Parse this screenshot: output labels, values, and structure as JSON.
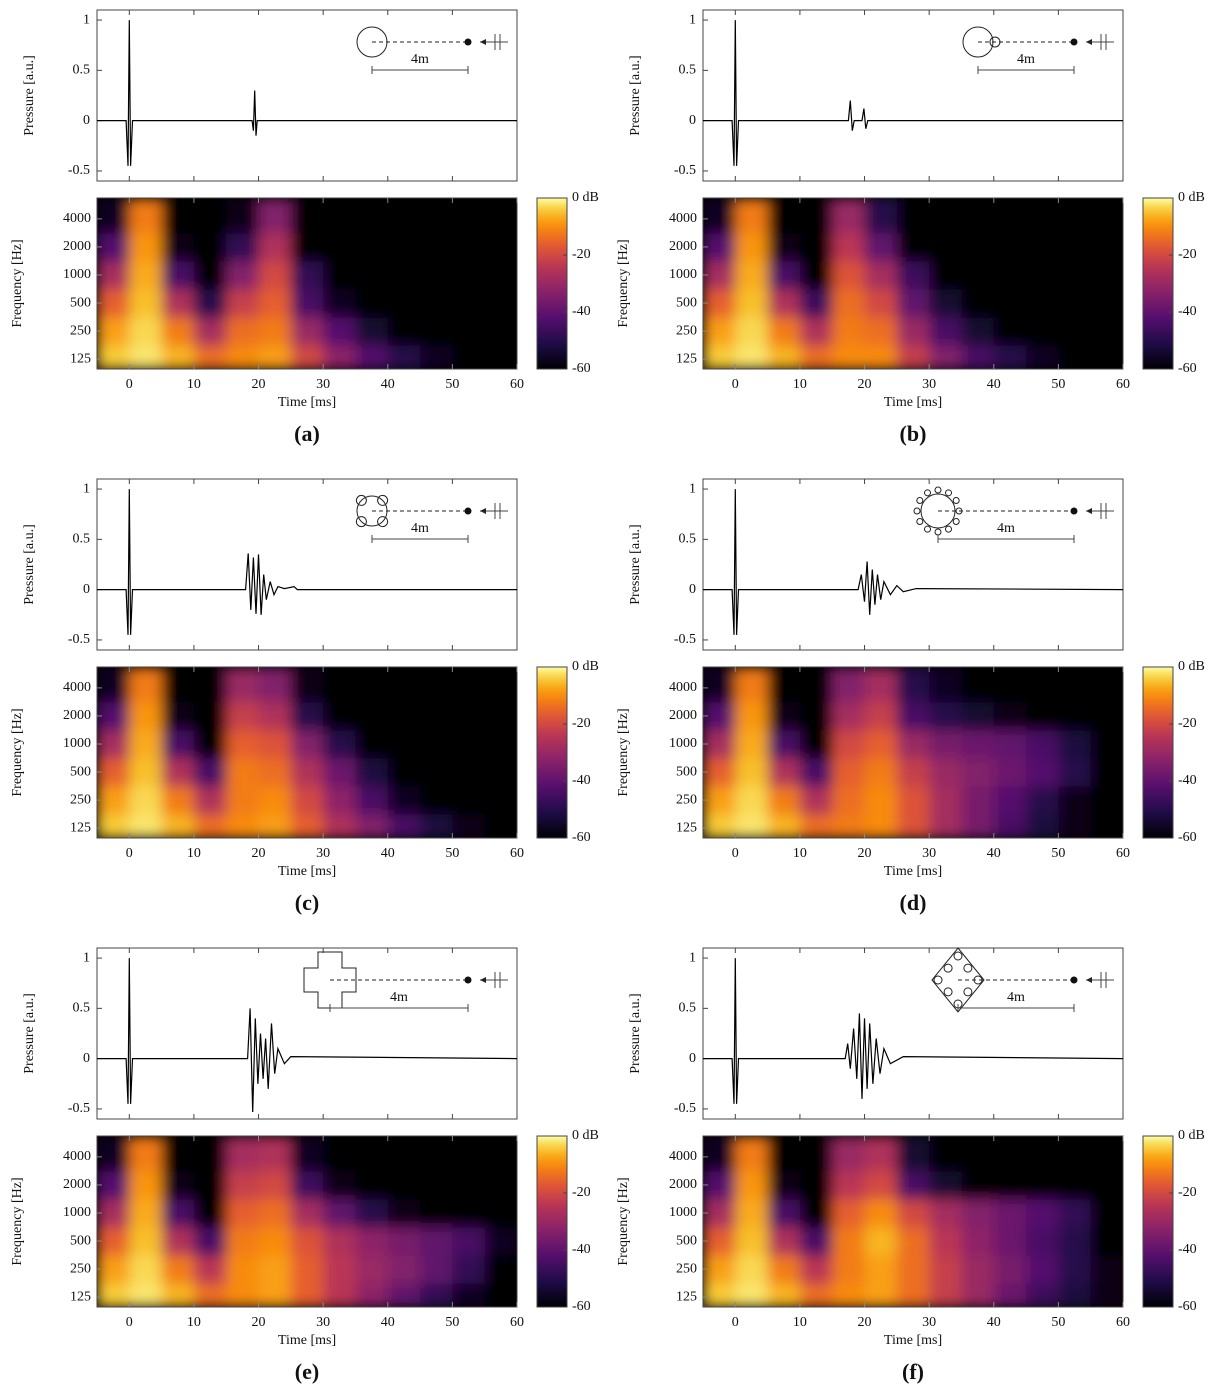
{
  "chart_data": [
    {
      "type": "line",
      "ylabel": "Pressure [a.u.]",
      "annotation": "4m",
      "xlim": [
        -5,
        60
      ],
      "ylim": [
        -0.6,
        1.1
      ],
      "yticks": [
        -0.5,
        0,
        0.5,
        1
      ],
      "color": "#000000",
      "x": [
        -5,
        -0.5,
        -0.2,
        0,
        0.2,
        0.5,
        19,
        19.2,
        19.4,
        19.6,
        19.8,
        20,
        60
      ],
      "values": [
        0,
        0,
        -0.45,
        1,
        -0.45,
        0,
        0,
        -0.1,
        0.3,
        -0.15,
        0,
        0,
        0
      ]
    },
    {
      "type": "heatmap",
      "caption": "(a)",
      "xlabel": "Time [ms]",
      "ylabel": "Frequency [Hz]",
      "xlim": [
        -5,
        60
      ],
      "xticks": [
        0,
        10,
        20,
        30,
        40,
        50,
        60
      ],
      "ylim": [
        98,
        6700
      ],
      "log_y": true,
      "yticks": [
        125,
        250,
        500,
        1000,
        2000,
        4000
      ],
      "xbins": [
        -5,
        0,
        5,
        10,
        15,
        20,
        25,
        30,
        35,
        40,
        45,
        50,
        55,
        60
      ],
      "y": [
        125,
        250,
        500,
        1000,
        2000,
        4000
      ],
      "values": [
        [
          -4,
          -2,
          -6,
          -14,
          -10,
          -8,
          -20,
          -32,
          -42,
          -50,
          -56,
          -60,
          -60
        ],
        [
          -8,
          -3,
          -12,
          -28,
          -14,
          -12,
          -30,
          -42,
          -54,
          -60,
          -60,
          -60,
          -60
        ],
        [
          -16,
          -5,
          -26,
          -50,
          -22,
          -16,
          -44,
          -56,
          -60,
          -60,
          -60,
          -60,
          -60
        ],
        [
          -28,
          -7,
          -44,
          -60,
          -34,
          -20,
          -48,
          -60,
          -60,
          -60,
          -60,
          -60,
          -60
        ],
        [
          -42,
          -9,
          -58,
          -60,
          -48,
          -26,
          -60,
          -60,
          -60,
          -60,
          -60,
          -60,
          -60
        ],
        [
          -56,
          -12,
          -60,
          -60,
          -58,
          -34,
          -60,
          -60,
          -60,
          -60,
          -60,
          -60,
          -60
        ]
      ],
      "colormap": "inferno",
      "clim": [
        -60,
        0
      ],
      "cticks": [
        {
          "value": 0,
          "label": "0 dB"
        },
        -20,
        -40,
        -60
      ]
    },
    {
      "type": "line",
      "ylabel": "Pressure [a.u.]",
      "annotation": "4m",
      "xlim": [
        -5,
        60
      ],
      "ylim": [
        -0.6,
        1.1
      ],
      "yticks": [
        -0.5,
        0,
        0.5,
        1
      ],
      "color": "#000000",
      "x": [
        -5,
        -0.5,
        -0.2,
        0,
        0.2,
        0.5,
        17.5,
        17.8,
        18.1,
        18.4,
        19.6,
        19.9,
        20.2,
        20.5,
        60
      ],
      "values": [
        0,
        0,
        -0.45,
        1,
        -0.45,
        0,
        0,
        0.2,
        -0.1,
        0,
        0,
        0.12,
        -0.08,
        0,
        0
      ]
    },
    {
      "type": "heatmap",
      "caption": "(b)",
      "xlabel": "Time [ms]",
      "ylabel": "Frequency [Hz]",
      "xlim": [
        -5,
        60
      ],
      "xticks": [
        0,
        10,
        20,
        30,
        40,
        50,
        60
      ],
      "ylim": [
        98,
        6700
      ],
      "log_y": true,
      "yticks": [
        125,
        250,
        500,
        1000,
        2000,
        4000
      ],
      "xbins": [
        -5,
        0,
        5,
        10,
        15,
        20,
        25,
        30,
        35,
        40,
        45,
        50,
        55,
        60
      ],
      "y": [
        125,
        250,
        500,
        1000,
        2000,
        4000
      ],
      "values": [
        [
          -4,
          -2,
          -6,
          -14,
          -10,
          -10,
          -22,
          -34,
          -44,
          -50,
          -56,
          -60,
          -60
        ],
        [
          -8,
          -3,
          -12,
          -26,
          -12,
          -14,
          -30,
          -44,
          -54,
          -60,
          -60,
          -60,
          -60
        ],
        [
          -16,
          -5,
          -26,
          -46,
          -14,
          -20,
          -40,
          -54,
          -60,
          -60,
          -60,
          -60,
          -60
        ],
        [
          -28,
          -7,
          -44,
          -60,
          -18,
          -28,
          -46,
          -60,
          -60,
          -60,
          -60,
          -60,
          -60
        ],
        [
          -42,
          -9,
          -58,
          -60,
          -24,
          -40,
          -60,
          -60,
          -60,
          -60,
          -60,
          -60,
          -60
        ],
        [
          -56,
          -12,
          -60,
          -60,
          -30,
          -50,
          -60,
          -60,
          -60,
          -60,
          -60,
          -60,
          -60
        ]
      ],
      "colormap": "inferno",
      "clim": [
        -60,
        0
      ],
      "cticks": [
        {
          "value": 0,
          "label": "0 dB"
        },
        -20,
        -40,
        -60
      ]
    },
    {
      "type": "line",
      "ylabel": "Pressure [a.u.]",
      "annotation": "4m",
      "xlim": [
        -5,
        60
      ],
      "ylim": [
        -0.6,
        1.1
      ],
      "yticks": [
        -0.5,
        0,
        0.5,
        1
      ],
      "color": "#000000",
      "x": [
        -5,
        -0.5,
        -0.2,
        0,
        0.2,
        0.5,
        18,
        18.4,
        18.8,
        19.2,
        19.6,
        20,
        20.4,
        20.8,
        21.2,
        21.8,
        22.4,
        23,
        24,
        25.5,
        26,
        60
      ],
      "values": [
        0,
        0,
        -0.45,
        1,
        -0.45,
        0,
        0,
        0.36,
        -0.2,
        0.32,
        -0.24,
        0.35,
        -0.25,
        0.15,
        -0.1,
        0.08,
        -0.05,
        0.03,
        0.01,
        0.03,
        0,
        0
      ]
    },
    {
      "type": "heatmap",
      "caption": "(c)",
      "xlabel": "Time [ms]",
      "ylabel": "Frequency [Hz]",
      "xlim": [
        -5,
        60
      ],
      "xticks": [
        0,
        10,
        20,
        30,
        40,
        50,
        60
      ],
      "ylim": [
        98,
        6700
      ],
      "log_y": true,
      "yticks": [
        125,
        250,
        500,
        1000,
        2000,
        4000
      ],
      "xbins": [
        -5,
        0,
        5,
        10,
        15,
        20,
        25,
        30,
        35,
        40,
        45,
        50,
        55,
        60
      ],
      "y": [
        125,
        250,
        500,
        1000,
        2000,
        4000
      ],
      "values": [
        [
          -4,
          -2,
          -6,
          -14,
          -10,
          -8,
          -16,
          -26,
          -34,
          -44,
          -52,
          -58,
          -60
        ],
        [
          -8,
          -3,
          -12,
          -26,
          -12,
          -10,
          -20,
          -32,
          -44,
          -56,
          -60,
          -60,
          -60
        ],
        [
          -16,
          -5,
          -26,
          -44,
          -12,
          -14,
          -26,
          -38,
          -52,
          -60,
          -60,
          -60,
          -60
        ],
        [
          -28,
          -7,
          -44,
          -60,
          -16,
          -18,
          -34,
          -50,
          -60,
          -60,
          -60,
          -60,
          -60
        ],
        [
          -42,
          -9,
          -58,
          -60,
          -22,
          -26,
          -50,
          -60,
          -60,
          -60,
          -60,
          -60,
          -60
        ],
        [
          -56,
          -12,
          -60,
          -60,
          -30,
          -34,
          -58,
          -60,
          -60,
          -60,
          -60,
          -60,
          -60
        ]
      ],
      "colormap": "inferno",
      "clim": [
        -60,
        0
      ],
      "cticks": [
        {
          "value": 0,
          "label": "0 dB"
        },
        -20,
        -40,
        -60
      ]
    },
    {
      "type": "line",
      "ylabel": "Pressure [a.u.]",
      "annotation": "4m",
      "xlim": [
        -5,
        60
      ],
      "ylim": [
        -0.6,
        1.1
      ],
      "yticks": [
        -0.5,
        0,
        0.5,
        1
      ],
      "color": "#000000",
      "x": [
        -5,
        -0.5,
        -0.2,
        0,
        0.2,
        0.5,
        19,
        19.5,
        20,
        20.4,
        20.8,
        21.2,
        21.6,
        22,
        22.5,
        23,
        24,
        25,
        26,
        28,
        60
      ],
      "values": [
        0,
        0,
        -0.45,
        1,
        -0.45,
        0,
        0,
        0.15,
        -0.12,
        0.28,
        -0.25,
        0.2,
        -0.15,
        0.15,
        -0.1,
        0.08,
        -0.05,
        0.04,
        -0.02,
        0.01,
        0
      ]
    },
    {
      "type": "heatmap",
      "caption": "(d)",
      "xlabel": "Time [ms]",
      "ylabel": "Frequency [Hz]",
      "xlim": [
        -5,
        60
      ],
      "xticks": [
        0,
        10,
        20,
        30,
        40,
        50,
        60
      ],
      "ylim": [
        98,
        6700
      ],
      "log_y": true,
      "yticks": [
        125,
        250,
        500,
        1000,
        2000,
        4000
      ],
      "xbins": [
        -5,
        0,
        5,
        10,
        15,
        20,
        25,
        30,
        35,
        40,
        45,
        50,
        55,
        60
      ],
      "y": [
        125,
        250,
        500,
        1000,
        2000,
        4000
      ],
      "values": [
        [
          -4,
          -2,
          -6,
          -14,
          -12,
          -10,
          -18,
          -28,
          -36,
          -44,
          -52,
          -58,
          -60
        ],
        [
          -8,
          -3,
          -12,
          -26,
          -14,
          -10,
          -18,
          -28,
          -36,
          -42,
          -50,
          -58,
          -60
        ],
        [
          -16,
          -5,
          -26,
          -44,
          -16,
          -12,
          -22,
          -30,
          -34,
          -38,
          -42,
          -50,
          -60
        ],
        [
          -28,
          -7,
          -44,
          -60,
          -20,
          -16,
          -30,
          -36,
          -38,
          -40,
          -44,
          -52,
          -60
        ],
        [
          -42,
          -9,
          -58,
          -60,
          -28,
          -22,
          -44,
          -50,
          -54,
          -58,
          -60,
          -60,
          -60
        ],
        [
          -56,
          -12,
          -60,
          -60,
          -34,
          -28,
          -50,
          -56,
          -60,
          -60,
          -60,
          -60,
          -60
        ]
      ],
      "colormap": "inferno",
      "clim": [
        -60,
        0
      ],
      "cticks": [
        {
          "value": 0,
          "label": "0 dB"
        },
        -20,
        -40,
        -60
      ]
    },
    {
      "type": "line",
      "ylabel": "Pressure [a.u.]",
      "annotation": "4m",
      "xlim": [
        -5,
        60
      ],
      "ylim": [
        -0.6,
        1.1
      ],
      "yticks": [
        -0.5,
        0,
        0.5,
        1
      ],
      "color": "#000000",
      "x": [
        -5,
        -0.5,
        -0.2,
        0,
        0.2,
        0.5,
        18.3,
        18.7,
        19.1,
        19.5,
        19.9,
        20.3,
        20.7,
        21.1,
        21.5,
        22,
        22.5,
        23,
        24,
        25,
        60
      ],
      "values": [
        0,
        0,
        -0.45,
        1,
        -0.45,
        0,
        0,
        0.5,
        -0.53,
        0.4,
        -0.25,
        0.25,
        -0.2,
        0.2,
        -0.3,
        0.35,
        -0.15,
        0.1,
        -0.05,
        0.02,
        0
      ]
    },
    {
      "type": "heatmap",
      "caption": "(e)",
      "xlabel": "Time [ms]",
      "ylabel": "Frequency [Hz]",
      "xlim": [
        -5,
        60
      ],
      "xticks": [
        0,
        10,
        20,
        30,
        40,
        50,
        60
      ],
      "ylim": [
        98,
        6700
      ],
      "log_y": true,
      "yticks": [
        125,
        250,
        500,
        1000,
        2000,
        4000
      ],
      "xbins": [
        -5,
        0,
        5,
        10,
        15,
        20,
        25,
        30,
        35,
        40,
        45,
        50,
        55,
        60
      ],
      "y": [
        125,
        250,
        500,
        1000,
        2000,
        4000
      ],
      "values": [
        [
          -4,
          -2,
          -6,
          -14,
          -10,
          -8,
          -16,
          -24,
          -32,
          -40,
          -48,
          -56,
          -60
        ],
        [
          -8,
          -3,
          -12,
          -24,
          -10,
          -8,
          -16,
          -24,
          -30,
          -34,
          -40,
          -48,
          -60
        ],
        [
          -16,
          -5,
          -26,
          -44,
          -12,
          -10,
          -18,
          -26,
          -32,
          -36,
          -40,
          -44,
          -56
        ],
        [
          -28,
          -7,
          -44,
          -60,
          -16,
          -14,
          -28,
          -40,
          -50,
          -58,
          -60,
          -60,
          -60
        ],
        [
          -42,
          -9,
          -58,
          -60,
          -22,
          -20,
          -46,
          -58,
          -60,
          -60,
          -60,
          -60,
          -60
        ],
        [
          -56,
          -12,
          -60,
          -60,
          -28,
          -26,
          -56,
          -60,
          -60,
          -60,
          -60,
          -60,
          -60
        ]
      ],
      "colormap": "inferno",
      "clim": [
        -60,
        0
      ],
      "cticks": [
        {
          "value": 0,
          "label": "0 dB"
        },
        -20,
        -40,
        -60
      ]
    },
    {
      "type": "line",
      "ylabel": "Pressure [a.u.]",
      "annotation": "4m",
      "xlim": [
        -5,
        60
      ],
      "ylim": [
        -0.6,
        1.1
      ],
      "yticks": [
        -0.5,
        0,
        0.5,
        1
      ],
      "color": "#000000",
      "x": [
        -5,
        -0.5,
        -0.2,
        0,
        0.2,
        0.5,
        17,
        17.4,
        17.8,
        18.3,
        18.8,
        19.2,
        19.6,
        20,
        20.4,
        20.8,
        21.3,
        21.8,
        22.4,
        23,
        24,
        26,
        60
      ],
      "values": [
        0,
        0,
        -0.45,
        1,
        -0.45,
        0,
        0,
        0.15,
        -0.1,
        0.3,
        -0.2,
        0.45,
        -0.4,
        0.4,
        -0.3,
        0.35,
        -0.25,
        0.2,
        -0.15,
        0.1,
        -0.05,
        0.02,
        0
      ]
    },
    {
      "type": "heatmap",
      "caption": "(f)",
      "xlabel": "Time [ms]",
      "ylabel": "Frequency [Hz]",
      "xlim": [
        -5,
        60
      ],
      "xticks": [
        0,
        10,
        20,
        30,
        40,
        50,
        60
      ],
      "ylim": [
        98,
        6700
      ],
      "log_y": true,
      "yticks": [
        125,
        250,
        500,
        1000,
        2000,
        4000
      ],
      "xbins": [
        -5,
        0,
        5,
        10,
        15,
        20,
        25,
        30,
        35,
        40,
        45,
        50,
        55,
        60
      ],
      "y": [
        125,
        250,
        500,
        1000,
        2000,
        4000
      ],
      "values": [
        [
          -4,
          -2,
          -6,
          -14,
          -10,
          -8,
          -14,
          -22,
          -30,
          -38,
          -46,
          -52,
          -58
        ],
        [
          -8,
          -3,
          -12,
          -24,
          -12,
          -8,
          -14,
          -22,
          -30,
          -36,
          -42,
          -50,
          -58
        ],
        [
          -16,
          -5,
          -26,
          -44,
          -12,
          -6,
          -14,
          -24,
          -32,
          -38,
          -44,
          -50,
          -60
        ],
        [
          -28,
          -7,
          -44,
          -60,
          -16,
          -10,
          -20,
          -28,
          -34,
          -38,
          -42,
          -48,
          -60
        ],
        [
          -42,
          -9,
          -58,
          -60,
          -24,
          -20,
          -44,
          -54,
          -60,
          -60,
          -60,
          -60,
          -60
        ],
        [
          -56,
          -12,
          -60,
          -60,
          -30,
          -26,
          -54,
          -60,
          -60,
          -60,
          -60,
          -60,
          -60
        ]
      ],
      "colormap": "inferno",
      "clim": [
        -60,
        0
      ],
      "cticks": [
        {
          "value": 0,
          "label": "0 dB"
        },
        -20,
        -40,
        -60
      ]
    }
  ]
}
